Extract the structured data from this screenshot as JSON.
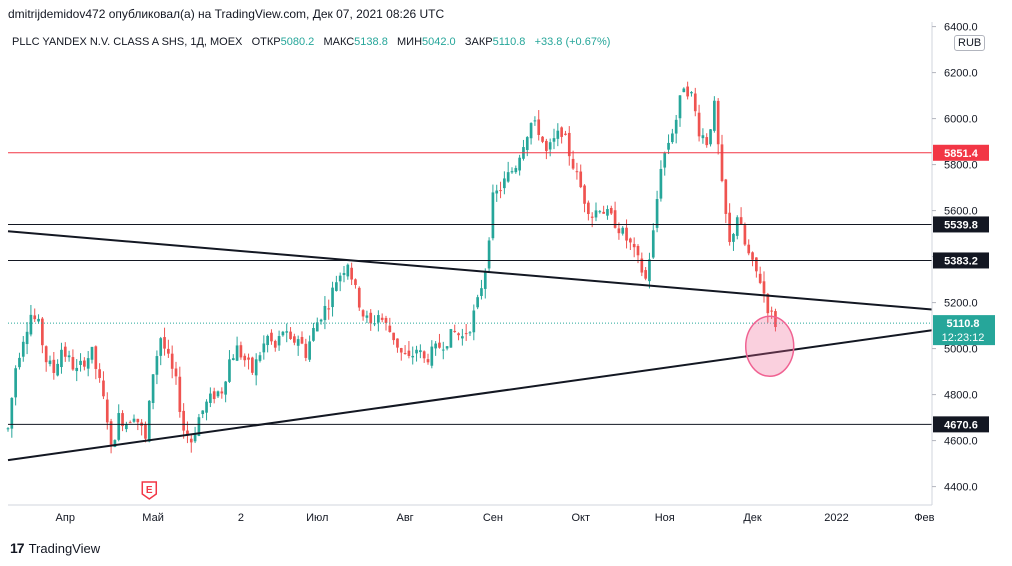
{
  "header": {
    "published": "dmitrijdemidov472 опубликовал(а) на TradingView.com, Дек 07, 2021 08:26 UTC"
  },
  "legend": {
    "symbol": "PLLC YANDEX N.V. CLASS A SHS, 1Д, MOEX",
    "open_label": "ОТКР",
    "open": "5080.2",
    "high_label": "МАКС",
    "high": "5138.8",
    "low_label": "МИН",
    "low": "5042.0",
    "close_label": "ЗАКР",
    "close": "5110.8",
    "change": "+33.8 (+0.67%)"
  },
  "currency": "RUB",
  "footer": {
    "brand": "TradingView",
    "logo": "17"
  },
  "colors": {
    "up": "#26a69a",
    "down": "#ef5350",
    "line": "#131722",
    "resistance": "#f23645",
    "current": "#26a69a",
    "circle": "#f06292"
  },
  "chart_data": {
    "type": "candlestick",
    "title": "PLLC YANDEX N.V. CLASS A SHS, 1Д, MOEX",
    "xlabel": "",
    "ylabel": "",
    "ylim": [
      4320,
      6420
    ],
    "y_ticks": [
      4400.0,
      4600.0,
      4800.0,
      5000.0,
      5200.0,
      5400.0,
      5600.0,
      5800.0,
      6000.0,
      6200.0,
      6400.0
    ],
    "y_tick_labels": [
      "4400.0",
      "4600.0",
      "4800.0",
      "5000.0",
      "5200.0",
      "5400.0",
      "5600.0",
      "5800.0",
      "6000.0",
      "6200.0",
      "6400.0"
    ],
    "x_range_days": [
      0,
      242
    ],
    "x_ticks": [
      {
        "day": 15,
        "label": "Апр"
      },
      {
        "day": 38,
        "label": "Май"
      },
      {
        "day": 61,
        "label": "2"
      },
      {
        "day": 81,
        "label": "Июл"
      },
      {
        "day": 104,
        "label": "Авг"
      },
      {
        "day": 127,
        "label": "Сен"
      },
      {
        "day": 150,
        "label": "Окт"
      },
      {
        "day": 172,
        "label": "Ноя"
      },
      {
        "day": 195,
        "label": "Дек"
      },
      {
        "day": 217,
        "label": "2022"
      },
      {
        "day": 240,
        "label": "Фев"
      }
    ],
    "price_path": [
      [
        0,
        4650
      ],
      [
        2,
        4920
      ],
      [
        4,
        5050
      ],
      [
        6,
        5150
      ],
      [
        8,
        5100
      ],
      [
        10,
        4950
      ],
      [
        12,
        4900
      ],
      [
        14,
        5000
      ],
      [
        16,
        4950
      ],
      [
        18,
        4900
      ],
      [
        20,
        4950
      ],
      [
        22,
        4980
      ],
      [
        24,
        4850
      ],
      [
        26,
        4700
      ],
      [
        27,
        4560
      ],
      [
        29,
        4700
      ],
      [
        31,
        4680
      ],
      [
        33,
        4720
      ],
      [
        35,
        4650
      ],
      [
        36,
        4600
      ],
      [
        38,
        4900
      ],
      [
        40,
        5050
      ],
      [
        42,
        4950
      ],
      [
        44,
        4850
      ],
      [
        46,
        4650
      ],
      [
        48,
        4600
      ],
      [
        50,
        4700
      ],
      [
        52,
        4760
      ],
      [
        54,
        4800
      ],
      [
        56,
        4820
      ],
      [
        58,
        4950
      ],
      [
        60,
        5000
      ],
      [
        62,
        4950
      ],
      [
        64,
        4900
      ],
      [
        66,
        4980
      ],
      [
        68,
        5050
      ],
      [
        70,
        5000
      ],
      [
        72,
        5080
      ],
      [
        74,
        5020
      ],
      [
        76,
        5050
      ],
      [
        78,
        4980
      ],
      [
        80,
        5080
      ],
      [
        82,
        5150
      ],
      [
        84,
        5200
      ],
      [
        86,
        5300
      ],
      [
        88,
        5350
      ],
      [
        89,
        5380
      ],
      [
        91,
        5250
      ],
      [
        93,
        5150
      ],
      [
        95,
        5100
      ],
      [
        97,
        5150
      ],
      [
        99,
        5100
      ],
      [
        101,
        5050
      ],
      [
        103,
        4980
      ],
      [
        105,
        4950
      ],
      [
        107,
        5000
      ],
      [
        109,
        4950
      ],
      [
        111,
        4980
      ],
      [
        113,
        5010
      ],
      [
        115,
        5040
      ],
      [
        117,
        5070
      ],
      [
        119,
        5050
      ],
      [
        121,
        5100
      ],
      [
        123,
        5200
      ],
      [
        125,
        5350
      ],
      [
        127,
        5650
      ],
      [
        129,
        5700
      ],
      [
        131,
        5750
      ],
      [
        133,
        5800
      ],
      [
        135,
        5900
      ],
      [
        137,
        5980
      ],
      [
        139,
        5950
      ],
      [
        141,
        5850
      ],
      [
        143,
        5900
      ],
      [
        145,
        5950
      ],
      [
        147,
        5850
      ],
      [
        149,
        5750
      ],
      [
        151,
        5650
      ],
      [
        153,
        5580
      ],
      [
        155,
        5620
      ],
      [
        157,
        5580
      ],
      [
        159,
        5550
      ],
      [
        161,
        5500
      ],
      [
        163,
        5450
      ],
      [
        165,
        5380
      ],
      [
        167,
        5300
      ],
      [
        169,
        5500
      ],
      [
        171,
        5800
      ],
      [
        173,
        5900
      ],
      [
        175,
        6000
      ],
      [
        177,
        6150
      ],
      [
        179,
        6100
      ],
      [
        181,
        5950
      ],
      [
        183,
        5900
      ],
      [
        185,
        6050
      ],
      [
        187,
        5700
      ],
      [
        189,
        5450
      ],
      [
        191,
        5580
      ],
      [
        193,
        5450
      ],
      [
        195,
        5360
      ],
      [
        197,
        5300
      ],
      [
        199,
        5180
      ],
      [
        201,
        5110
      ]
    ],
    "horizontal_levels": [
      {
        "price": 5851.4,
        "label": "5851.4",
        "kind": "resistance"
      },
      {
        "price": 5539.8,
        "label": "5539.8",
        "kind": "level"
      },
      {
        "price": 5383.2,
        "label": "5383.2",
        "kind": "level"
      },
      {
        "price": 4670.6,
        "label": "4670.6",
        "kind": "level"
      }
    ],
    "current_price": {
      "price": 5110.8,
      "label": "5110.8",
      "timer": "12:23:12"
    },
    "trendlines": [
      {
        "name": "descending",
        "from": {
          "day": 0,
          "price": 5510
        },
        "to": {
          "day": 242,
          "price": 5170
        }
      },
      {
        "name": "ascending",
        "from": {
          "day": 0,
          "price": 4515
        },
        "to": {
          "day": 242,
          "price": 5080
        }
      }
    ],
    "highlight_circle": {
      "day": 199.5,
      "price": 5010
    },
    "earnings_marker": {
      "day": 37,
      "label": "E"
    }
  }
}
